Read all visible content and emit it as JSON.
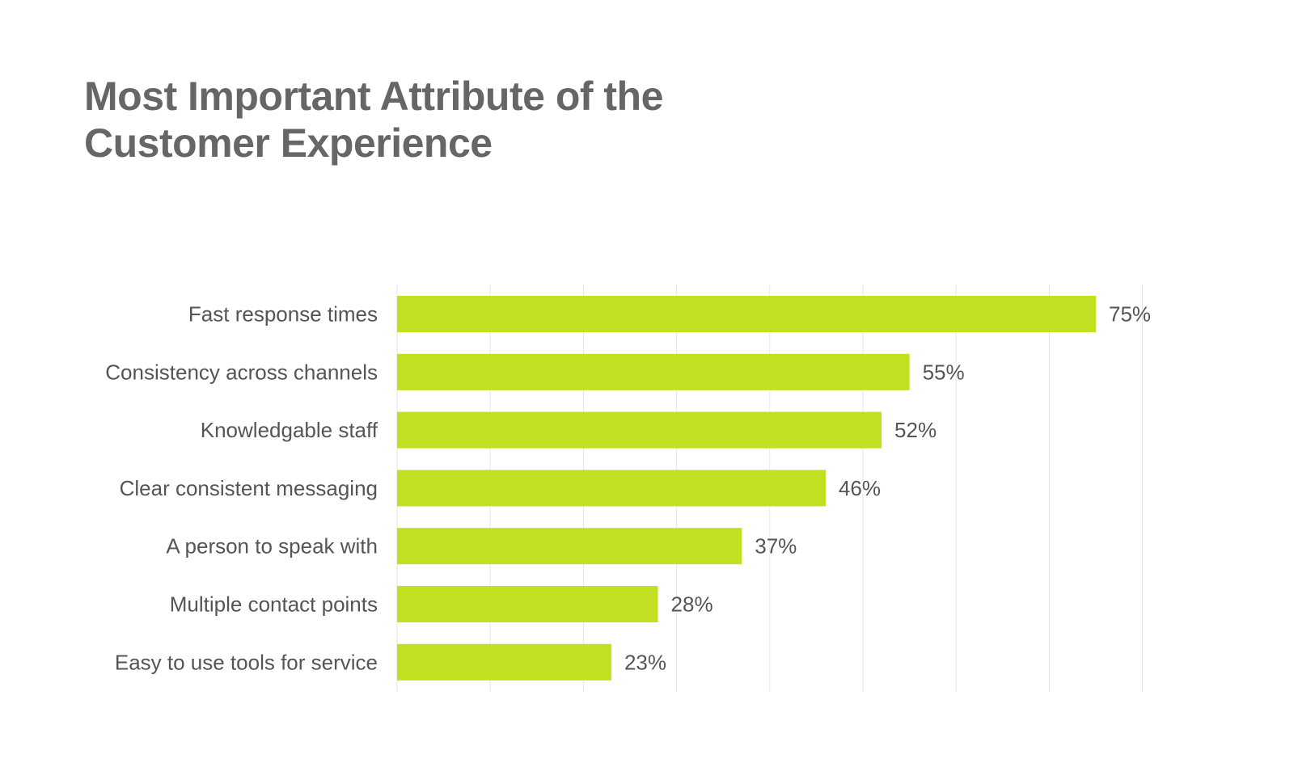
{
  "chart_data": {
    "type": "bar",
    "orientation": "horizontal",
    "title_lines": [
      "Most Important Attribute of the",
      "Customer Experience"
    ],
    "categories": [
      "Fast response times",
      "Consistency across channels",
      "Knowledgable staff",
      "Clear consistent messaging",
      "A person to speak with",
      "Multiple contact points",
      "Easy to use tools for service"
    ],
    "values": [
      75,
      55,
      52,
      46,
      37,
      28,
      23
    ],
    "value_labels": [
      "75%",
      "55%",
      "52%",
      "46%",
      "37%",
      "28%",
      "23%"
    ],
    "xlim": [
      0,
      80
    ],
    "grid": true,
    "grid_step": 10,
    "legend": "none",
    "colors": {
      "bar": "#c2df22",
      "grid": "#e6e6e6",
      "text": "#555555",
      "title": "#666666"
    }
  }
}
